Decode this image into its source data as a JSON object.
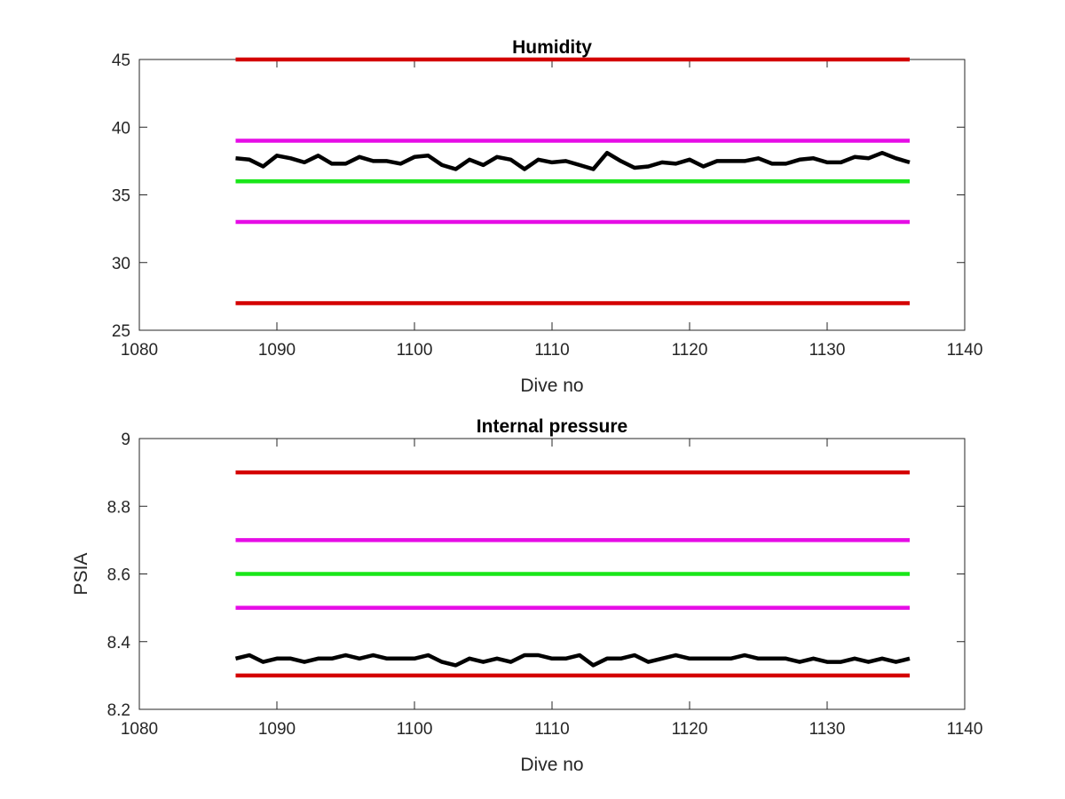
{
  "figure": {
    "background": "#ffffff"
  },
  "chart_data": [
    {
      "type": "line",
      "title": "Humidity",
      "xlabel": "Dive no",
      "ylabel": "",
      "xlim": [
        1080,
        1140
      ],
      "ylim": [
        25,
        45
      ],
      "xticks": [
        "1080",
        "1090",
        "1100",
        "1110",
        "1120",
        "1130",
        "1140"
      ],
      "yticks": [
        "25",
        "30",
        "35",
        "40",
        "45"
      ],
      "grid": false,
      "legend": "none",
      "series": [
        {
          "color": "#d40000",
          "x": [
            1087,
            1136
          ],
          "y": [
            45,
            45
          ]
        },
        {
          "color": "#e60ce6",
          "x": [
            1087,
            1136
          ],
          "y": [
            39,
            39
          ]
        },
        {
          "color": "#19e619",
          "x": [
            1087,
            1136
          ],
          "y": [
            36,
            36
          ]
        },
        {
          "color": "#e60ce6",
          "x": [
            1087,
            1136
          ],
          "y": [
            33,
            33
          ]
        },
        {
          "color": "#d40000",
          "x": [
            1087,
            1136
          ],
          "y": [
            27,
            27
          ]
        },
        {
          "color": "#000000",
          "x": [
            1087,
            1088,
            1089,
            1090,
            1091,
            1092,
            1093,
            1094,
            1095,
            1096,
            1097,
            1098,
            1099,
            1100,
            1101,
            1102,
            1103,
            1104,
            1105,
            1106,
            1107,
            1108,
            1109,
            1110,
            1111,
            1112,
            1113,
            1114,
            1115,
            1116,
            1117,
            1118,
            1119,
            1120,
            1121,
            1122,
            1123,
            1124,
            1125,
            1126,
            1127,
            1128,
            1129,
            1130,
            1131,
            1132,
            1133,
            1134,
            1135,
            1136
          ],
          "y": [
            37.7,
            37.6,
            37.1,
            37.9,
            37.7,
            37.4,
            37.9,
            37.3,
            37.3,
            37.8,
            37.5,
            37.5,
            37.3,
            37.8,
            37.9,
            37.2,
            36.9,
            37.6,
            37.2,
            37.8,
            37.6,
            36.9,
            37.6,
            37.4,
            37.5,
            37.2,
            36.9,
            38.1,
            37.5,
            37.0,
            37.1,
            37.4,
            37.3,
            37.6,
            37.1,
            37.5,
            37.5,
            37.5,
            37.7,
            37.3,
            37.3,
            37.6,
            37.7,
            37.4,
            37.4,
            37.8,
            37.7,
            38.1,
            37.7,
            37.4
          ]
        }
      ]
    },
    {
      "type": "line",
      "title": "Internal pressure",
      "xlabel": "Dive no",
      "ylabel": "PSIA",
      "xlim": [
        1080,
        1140
      ],
      "ylim": [
        8.2,
        9.0
      ],
      "xticks": [
        "1080",
        "1090",
        "1100",
        "1110",
        "1120",
        "1130",
        "1140"
      ],
      "yticks": [
        "8.2",
        "8.4",
        "8.6",
        "8.8",
        "9"
      ],
      "grid": false,
      "legend": "none",
      "series": [
        {
          "color": "#d40000",
          "x": [
            1087,
            1136
          ],
          "y": [
            8.9,
            8.9
          ]
        },
        {
          "color": "#e60ce6",
          "x": [
            1087,
            1136
          ],
          "y": [
            8.7,
            8.7
          ]
        },
        {
          "color": "#19e619",
          "x": [
            1087,
            1136
          ],
          "y": [
            8.6,
            8.6
          ]
        },
        {
          "color": "#e60ce6",
          "x": [
            1087,
            1136
          ],
          "y": [
            8.5,
            8.5
          ]
        },
        {
          "color": "#d40000",
          "x": [
            1087,
            1136
          ],
          "y": [
            8.3,
            8.3
          ]
        },
        {
          "color": "#000000",
          "x": [
            1087,
            1088,
            1089,
            1090,
            1091,
            1092,
            1093,
            1094,
            1095,
            1096,
            1097,
            1098,
            1099,
            1100,
            1101,
            1102,
            1103,
            1104,
            1105,
            1106,
            1107,
            1108,
            1109,
            1110,
            1111,
            1112,
            1113,
            1114,
            1115,
            1116,
            1117,
            1118,
            1119,
            1120,
            1121,
            1122,
            1123,
            1124,
            1125,
            1126,
            1127,
            1128,
            1129,
            1130,
            1131,
            1132,
            1133,
            1134,
            1135,
            1136
          ],
          "y": [
            8.35,
            8.36,
            8.34,
            8.35,
            8.35,
            8.34,
            8.35,
            8.35,
            8.36,
            8.35,
            8.36,
            8.35,
            8.35,
            8.35,
            8.36,
            8.34,
            8.33,
            8.35,
            8.34,
            8.35,
            8.34,
            8.36,
            8.36,
            8.35,
            8.35,
            8.36,
            8.33,
            8.35,
            8.35,
            8.36,
            8.34,
            8.35,
            8.36,
            8.35,
            8.35,
            8.35,
            8.35,
            8.36,
            8.35,
            8.35,
            8.35,
            8.34,
            8.35,
            8.34,
            8.34,
            8.35,
            8.34,
            8.35,
            8.34,
            8.35
          ]
        }
      ]
    }
  ]
}
